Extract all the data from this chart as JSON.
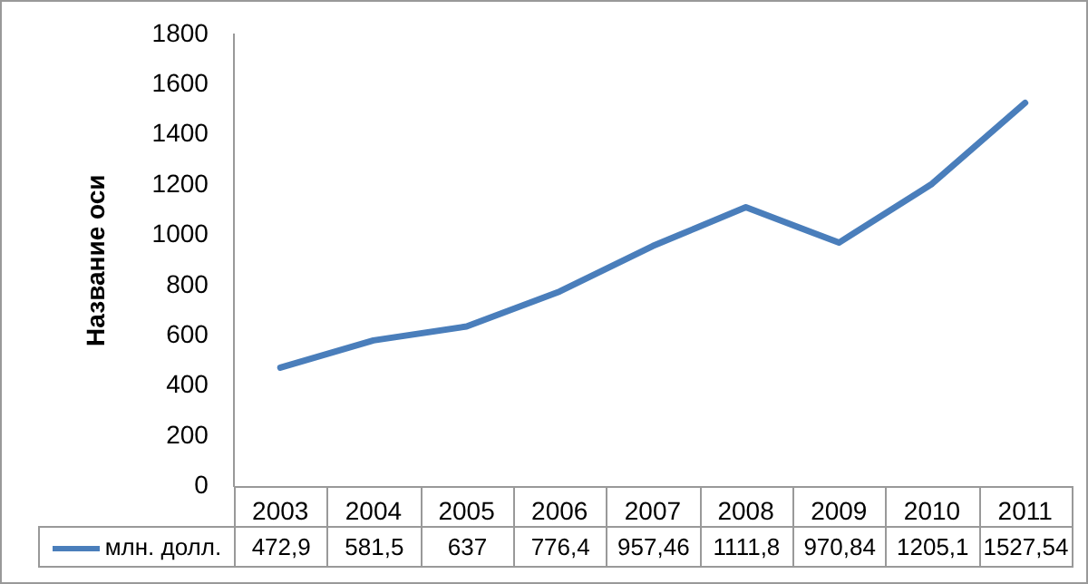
{
  "chart_data": {
    "type": "line",
    "ylabel": "Название оси",
    "categories": [
      "2003",
      "2004",
      "2005",
      "2006",
      "2007",
      "2008",
      "2009",
      "2010",
      "2011"
    ],
    "series": [
      {
        "name": "млн. долл.",
        "color": "#4a7ebb",
        "values": [
          472.9,
          581.5,
          637,
          776.4,
          957.46,
          1111.8,
          970.84,
          1205.1,
          1527.54
        ],
        "value_labels": [
          "472,9",
          "581,5",
          "637",
          "776,4",
          "957,46",
          "1111,8",
          "970,84",
          "1205,1",
          "1527,54"
        ]
      }
    ],
    "ylim": [
      0,
      1800
    ],
    "yticks": [
      0,
      200,
      400,
      600,
      800,
      1000,
      1200,
      1400,
      1600,
      1800
    ],
    "grid": false,
    "legend": "bottom",
    "marker": "none",
    "line_style": "solid"
  }
}
